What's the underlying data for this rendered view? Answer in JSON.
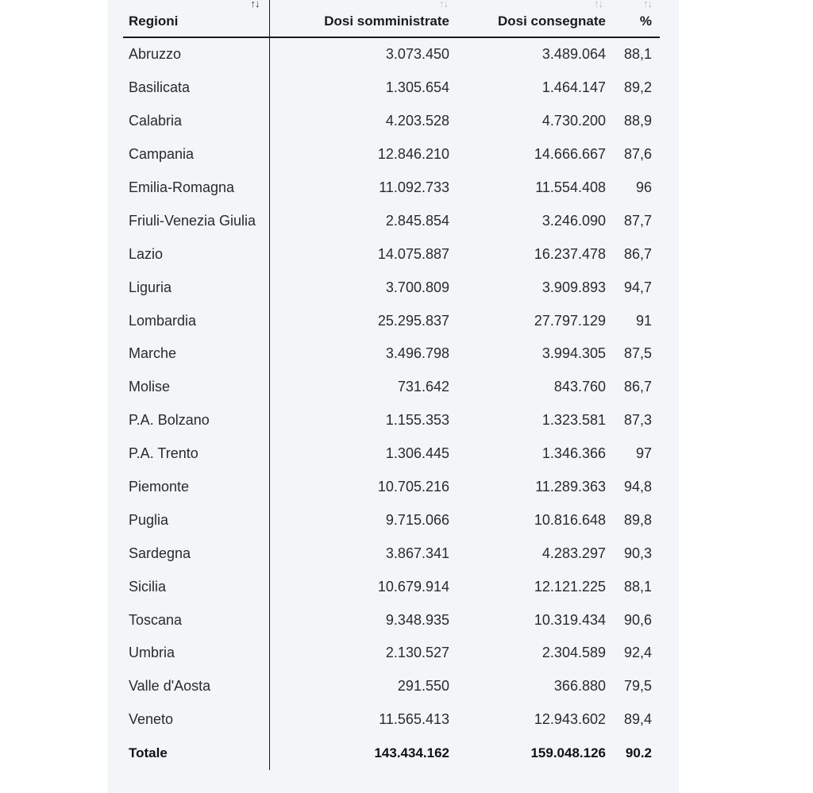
{
  "table": {
    "headers": {
      "region": "Regioni",
      "administered": "Dosi somministrate",
      "delivered": "Dosi consegnate",
      "percent": "%"
    },
    "sort_icon": "↑↓",
    "rows": [
      {
        "region": "Abruzzo",
        "administered": "3.073.450",
        "delivered": "3.489.064",
        "percent": "88,1"
      },
      {
        "region": "Basilicata",
        "administered": "1.305.654",
        "delivered": "1.464.147",
        "percent": "89,2"
      },
      {
        "region": "Calabria",
        "administered": "4.203.528",
        "delivered": "4.730.200",
        "percent": "88,9"
      },
      {
        "region": "Campania",
        "administered": "12.846.210",
        "delivered": "14.666.667",
        "percent": "87,6"
      },
      {
        "region": "Emilia-Romagna",
        "administered": "11.092.733",
        "delivered": "11.554.408",
        "percent": "96"
      },
      {
        "region": "Friuli-Venezia Giulia",
        "administered": "2.845.854",
        "delivered": "3.246.090",
        "percent": "87,7"
      },
      {
        "region": "Lazio",
        "administered": "14.075.887",
        "delivered": "16.237.478",
        "percent": "86,7"
      },
      {
        "region": "Liguria",
        "administered": "3.700.809",
        "delivered": "3.909.893",
        "percent": "94,7"
      },
      {
        "region": "Lombardia",
        "administered": "25.295.837",
        "delivered": "27.797.129",
        "percent": "91"
      },
      {
        "region": "Marche",
        "administered": "3.496.798",
        "delivered": "3.994.305",
        "percent": "87,5"
      },
      {
        "region": "Molise",
        "administered": "731.642",
        "delivered": "843.760",
        "percent": "86,7"
      },
      {
        "region": "P.A. Bolzano",
        "administered": "1.155.353",
        "delivered": "1.323.581",
        "percent": "87,3"
      },
      {
        "region": "P.A. Trento",
        "administered": "1.306.445",
        "delivered": "1.346.366",
        "percent": "97"
      },
      {
        "region": "Piemonte",
        "administered": "10.705.216",
        "delivered": "11.289.363",
        "percent": "94,8"
      },
      {
        "region": "Puglia",
        "administered": "9.715.066",
        "delivered": "10.816.648",
        "percent": "89,8"
      },
      {
        "region": "Sardegna",
        "administered": "3.867.341",
        "delivered": "4.283.297",
        "percent": "90,3"
      },
      {
        "region": "Sicilia",
        "administered": "10.679.914",
        "delivered": "12.121.225",
        "percent": "88,1"
      },
      {
        "region": "Toscana",
        "administered": "9.348.935",
        "delivered": "10.319.434",
        "percent": "90,6"
      },
      {
        "region": "Umbria",
        "administered": "2.130.527",
        "delivered": "2.304.589",
        "percent": "92,4"
      },
      {
        "region": "Valle d'Aosta",
        "administered": "291.550",
        "delivered": "366.880",
        "percent": "79,5"
      },
      {
        "region": "Veneto",
        "administered": "11.565.413",
        "delivered": "12.943.602",
        "percent": "89,4"
      }
    ],
    "total": {
      "label": "Totale",
      "administered": "143.434.162",
      "delivered": "159.048.126",
      "percent": "90.2"
    }
  },
  "colors": {
    "panel_background": "#f3f6f9",
    "inactive_sort_icon": "#b5bcc4",
    "active_sort_icon": "#333333"
  }
}
